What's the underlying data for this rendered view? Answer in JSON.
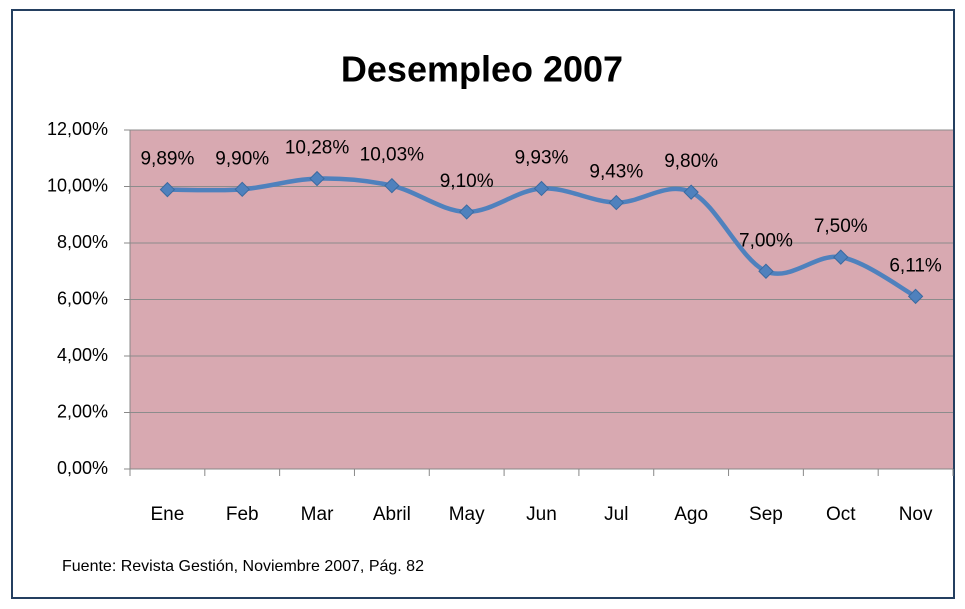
{
  "chart_data": {
    "type": "line",
    "title": "Desempleo 2007",
    "categories": [
      "Ene",
      "Feb",
      "Mar",
      "Abril",
      "May",
      "Jun",
      "Jul",
      "Ago",
      "Sep",
      "Oct",
      "Nov"
    ],
    "series": [
      {
        "color": "#4f81bd",
        "values": [
          9.89,
          9.9,
          10.28,
          10.03,
          9.1,
          9.93,
          9.43,
          9.8,
          7.0,
          7.5,
          6.11
        ],
        "value_labels": [
          "9,89%",
          "9,90%",
          "10,28%",
          "10,03%",
          "9,10%",
          "9,93%",
          "9,43%",
          "9,80%",
          "7,00%",
          "7,50%",
          "6,11%"
        ]
      }
    ],
    "ylim": [
      0,
      12
    ],
    "yticks": [
      {
        "value": 0,
        "label": "0,00%"
      },
      {
        "value": 2,
        "label": "2,00%"
      },
      {
        "value": 4,
        "label": "4,00%"
      },
      {
        "value": 6,
        "label": "6,00%"
      },
      {
        "value": 8,
        "label": "8,00%"
      },
      {
        "value": 10,
        "label": "10,00%"
      },
      {
        "value": 12,
        "label": "12,00%"
      }
    ],
    "grid": true,
    "plot_background": "#d8a9b1",
    "source": "Fuente: Revista Gestión, Noviembre 2007, Pág. 82"
  }
}
